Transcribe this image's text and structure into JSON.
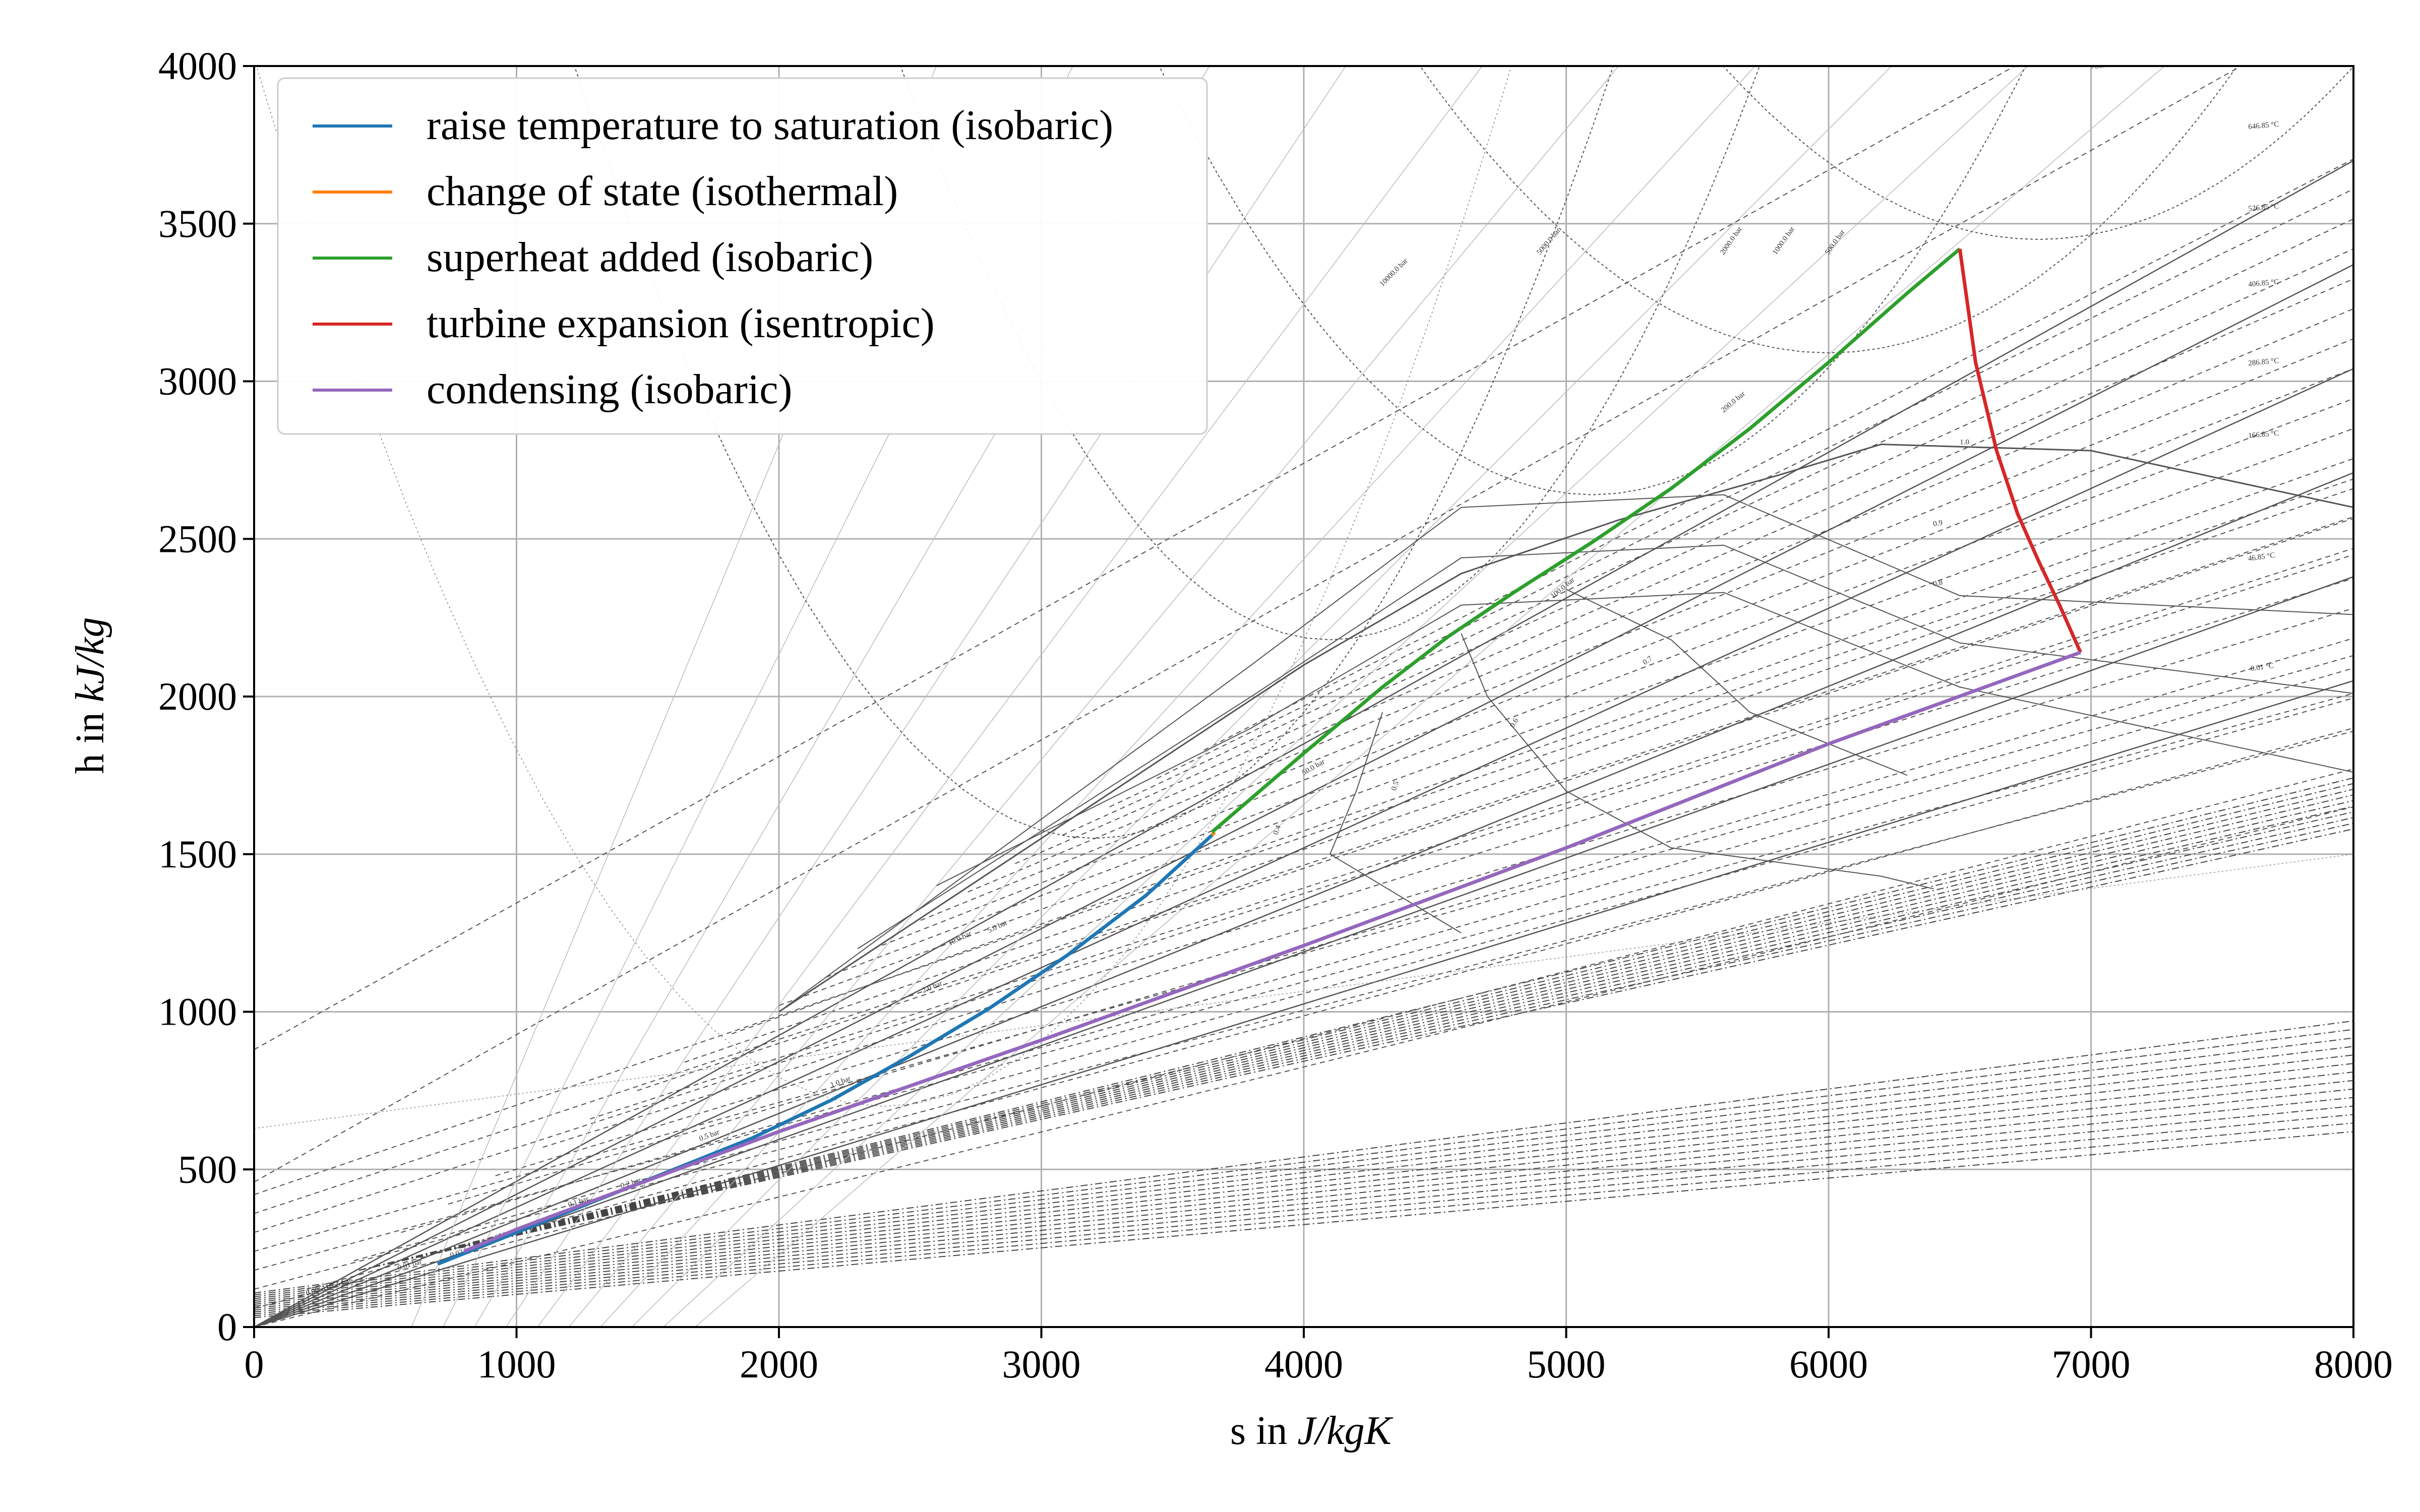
{
  "chart_data": {
    "type": "line",
    "xlabel": "s in J/kgK",
    "ylabel": "h in kJ/kg",
    "xlim": [
      0,
      8000
    ],
    "ylim": [
      0,
      4000
    ],
    "x_ticks": [
      0,
      1000,
      2000,
      3000,
      4000,
      5000,
      6000,
      7000,
      8000
    ],
    "y_ticks": [
      0,
      500,
      1000,
      1500,
      2000,
      2500,
      3000,
      3500,
      4000
    ],
    "grid": true,
    "legend_position": "top-left",
    "series": [
      {
        "name": "raise temperature to saturation (isobaric)",
        "color": "#1f77b4",
        "x": [
          700,
          1000,
          1300,
          1600,
          1900,
          2200,
          2500,
          2800,
          3100,
          3400,
          3650
        ],
        "y": [
          200,
          300,
          400,
          500,
          600,
          720,
          860,
          1010,
          1180,
          1370,
          1560
        ]
      },
      {
        "name": "change of state (isothermal)",
        "color": "#ff7f0e",
        "x": [
          3650,
          3660
        ],
        "y": [
          1560,
          1570
        ]
      },
      {
        "name": "superheat added (isobaric)",
        "color": "#2ca02c",
        "x": [
          3650,
          4000,
          4300,
          4550,
          4800,
          5100,
          5400,
          5700,
          6000,
          6300,
          6500
        ],
        "y": [
          1570,
          1820,
          2030,
          2190,
          2330,
          2490,
          2660,
          2850,
          3060,
          3280,
          3420
        ]
      },
      {
        "name": "turbine expansion (isentropic)",
        "color": "#d62728",
        "x": [
          6500,
          6560,
          6640,
          6720,
          6800,
          6880,
          6960
        ],
        "y": [
          3420,
          3060,
          2780,
          2580,
          2430,
          2290,
          2140
        ]
      },
      {
        "name": "condensing (isobaric)",
        "color": "#9467bd",
        "x": [
          6960,
          6000,
          5000,
          4000,
          3000,
          2000,
          1000,
          800
        ],
        "y": [
          2140,
          1850,
          1520,
          1210,
          910,
          620,
          310,
          240
        ]
      }
    ],
    "isotherm_labels": [
      "-0.01 °C",
      "46.85 °C",
      "166.85 °C",
      "286.85 °C",
      "406.85 °C",
      "526.85 °C",
      "646.85 °C",
      "766.85 °C"
    ],
    "isobar_labels": [
      "10000.0 bar",
      "5000.0 bar",
      "2000.0 bar",
      "1000.0 bar",
      "500.0 bar",
      "200.0 bar",
      "100.0 bar",
      "50.0 bar",
      "10.0 bar",
      "5.0 bar",
      "2.0 bar",
      "1.0 bar",
      "0.5 bar",
      "0.2 bar",
      "0.1 bar",
      "0.05 bar",
      "0.02 bar",
      "0.01 bar",
      "0.00611655 bar"
    ],
    "quality_labels": [
      "1.0",
      "0.9",
      "0.8",
      "0.7",
      "0.6",
      "0.5",
      "0.4"
    ]
  }
}
